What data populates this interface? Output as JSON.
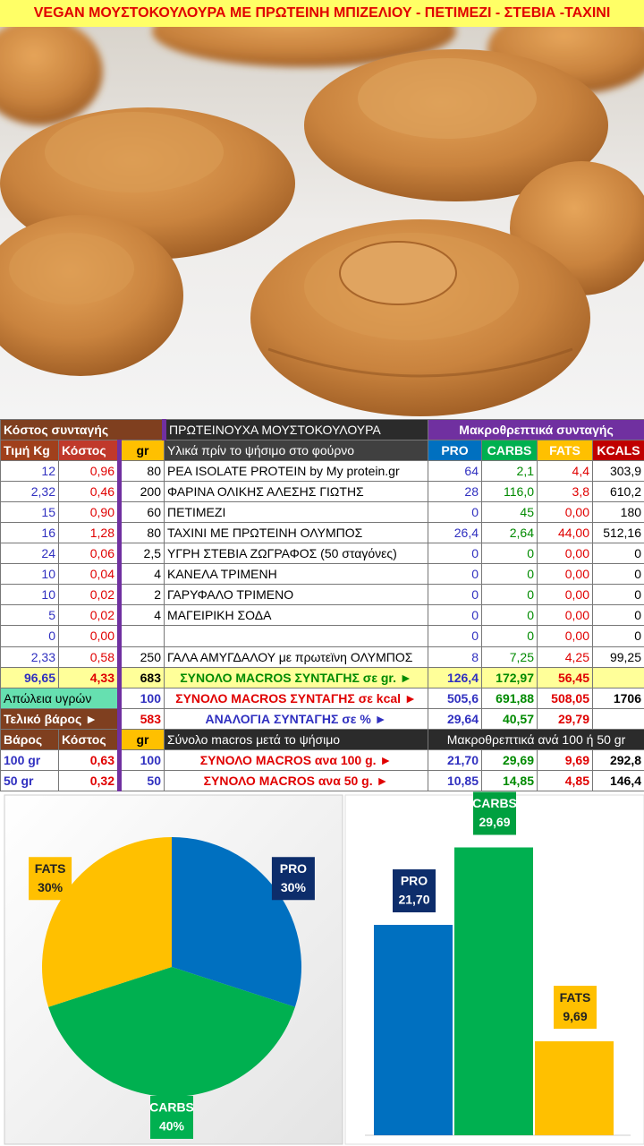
{
  "title": "VEGAN ΜΟΥΣΤΟΚΟΥΛΟΥΡΑ ΜΕ ΠΡΩΤΕΙΝΗ ΜΠΙΖΕΛΙΟΥ - ΠΕΤΙΜΕΖΙ - ΣΤΕΒΙΑ -ΤΑΧΙΝΙ",
  "table": {
    "rows": [
      [
        "Κόστος συνταγής",
        "ΠΡΩΤΕΙΝΟΥΧΑ ΜΟΥΣΤΟΚΟΥΛΟΥΡΑ",
        "Μακροθρεπτικά συνταγής"
      ],
      [
        "Τιμή Kg",
        "Κόστος",
        "gr",
        "Υλικά πρίν το ψήσιμο στο φούρνο",
        "PRO",
        "CARBS",
        "FATS",
        "KCALS"
      ],
      [
        "12",
        "0,96",
        "80",
        "PEA ISOLATE PROTEIN by My protein.gr",
        "64",
        "2,1",
        "4,4",
        "303,9"
      ],
      [
        "2,32",
        "0,46",
        "200",
        "ΦΑΡΙΝΑ ΟΛΙΚΗΣ ΑΛΕΣΗΣ ΓΙΩΤΗΣ",
        "28",
        "116,0",
        "3,8",
        "610,2"
      ],
      [
        "15",
        "0,90",
        "60",
        "ΠΕΤΙΜΕΖΙ",
        "0",
        "45",
        "0,00",
        "180"
      ],
      [
        "16",
        "1,28",
        "80",
        "ΤΑΧΙΝΙ ΜΕ ΠΡΩΤΕΙΝΗ ΟΛΥΜΠΟΣ",
        "26,4",
        "2,64",
        "44,00",
        "512,16"
      ],
      [
        "24",
        "0,06",
        "2,5",
        "ΥΓΡΗ ΣΤΕΒΙΑ ΖΩΓΡΑΦΟΣ (50 σταγόνες)",
        "0",
        "0",
        "0,00",
        "0"
      ],
      [
        "10",
        "0,04",
        "4",
        "ΚΑΝΕΛΑ ΤΡΙΜΕΝΗ",
        "0",
        "0",
        "0,00",
        "0"
      ],
      [
        "10",
        "0,02",
        "2",
        "ΓΑΡΥΦΑΛΟ ΤΡΙΜΕΝΟ",
        "0",
        "0",
        "0,00",
        "0"
      ],
      [
        "5",
        "0,02",
        "4",
        "ΜΑΓΕΙΡΙΚΗ ΣΟΔΑ",
        "0",
        "0",
        "0,00",
        "0"
      ],
      [
        "0",
        "0,00",
        null,
        null,
        "0",
        "0",
        "0,00",
        "0"
      ],
      [
        "2,33",
        "0,58",
        "250",
        "ΓΑΛΑ ΑΜΥΓΔΑΛΟΥ με πρωτεϊνη ΟΛΥΜΠΟΣ",
        "8",
        "7,25",
        "4,25",
        "99,25"
      ],
      [
        "96,65",
        "4,33",
        "683",
        "ΣΥΝΟΛΟ MACROS ΣΥΝΤΑΓΗΣ σε gr. ►",
        "126,4",
        "172,97",
        "56,45",
        null
      ],
      [
        "Απώλεια υγρών",
        "100",
        "ΣΥΝΟΛΟ MACROS ΣΥΝΤΑΓΗΣ σε kcal ►",
        "505,6",
        "691,88",
        "508,05",
        "1706"
      ],
      [
        "Τελικό βάρος ►",
        "583",
        "ΑΝΑΛΟΓΙΑ ΣΥΝΤΑΓΗΣ σε % ►",
        "29,64",
        "40,57",
        "29,79",
        null
      ],
      [
        "Βάρος",
        "Κόστος",
        "gr",
        "Σύνολο macros μετά το ψήσιμο",
        "Μακροθρεπτικά ανά 100 ή 50 gr"
      ],
      [
        "100 gr",
        "0,63",
        "100",
        "ΣΥΝΟΛΟ MACROS ανα 100 g. ►",
        "21,70",
        "29,69",
        "9,69",
        "292,8"
      ],
      [
        "50 gr",
        "0,32",
        "50",
        "ΣΥΝΟΛΟ MACROS ανα 50 g. ►",
        "10,85",
        "14,85",
        "4,85",
        "146,4"
      ]
    ]
  },
  "chart_data": [
    {
      "type": "pie",
      "categories": [
        "PRO",
        "CARBS",
        "FATS"
      ],
      "values": [
        30,
        40,
        30
      ],
      "value_labels": [
        "30%",
        "40%",
        "30%"
      ],
      "colors": [
        "#0070c0",
        "#00b050",
        "#ffc000"
      ]
    },
    {
      "type": "bar",
      "categories": [
        "PRO",
        "CARBS",
        "FATS"
      ],
      "values": [
        21.7,
        29.69,
        9.69
      ],
      "value_labels": [
        "21,70",
        "29,69",
        "9,69"
      ],
      "colors": [
        "#0070c0",
        "#00b050",
        "#ffc000"
      ],
      "ylim": [
        0,
        35
      ]
    }
  ]
}
